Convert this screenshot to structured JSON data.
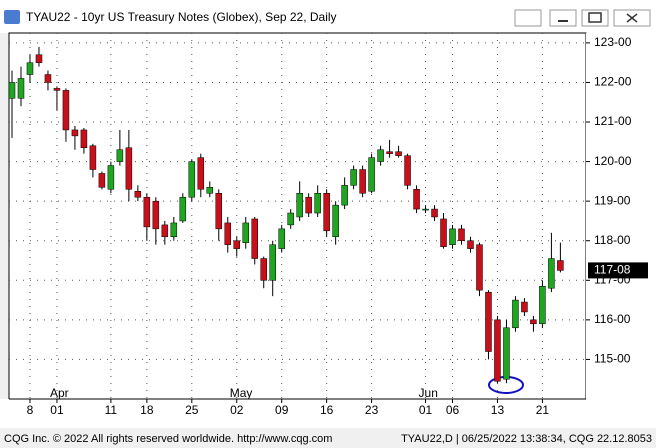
{
  "chart_data": {
    "type": "candlestick",
    "title": "TYAU22 - 10yr US Treasury Notes (Globex), Sep 22, Daily",
    "categories": [
      null,
      null,
      "8",
      null,
      null,
      "01",
      null,
      null,
      null,
      null,
      null,
      "11",
      null,
      null,
      null,
      "18",
      null,
      null,
      null,
      null,
      "25",
      null,
      null,
      null,
      null,
      "02",
      null,
      null,
      null,
      null,
      "09",
      null,
      null,
      null,
      null,
      "16",
      null,
      null,
      null,
      null,
      "23",
      null,
      null,
      null,
      null,
      null,
      "01",
      null,
      null,
      "06",
      null,
      null,
      null,
      null,
      "13",
      null,
      null,
      null,
      null,
      "21",
      null,
      null
    ],
    "months": [
      "Apr",
      "May",
      "Jun"
    ],
    "open": [
      121.6,
      121.6,
      122.2,
      122.7,
      122.2,
      121.85,
      121.8,
      120.8,
      120.8,
      120.4,
      119.7,
      119.3,
      120.0,
      120.35,
      119.25,
      119.1,
      119.0,
      118.4,
      118.1,
      118.5,
      119.1,
      120.1,
      119.2,
      119.2,
      118.45,
      118.0,
      117.95,
      118.55,
      117.55,
      117.0,
      117.8,
      118.4,
      118.6,
      119.1,
      118.7,
      119.2,
      118.1,
      118.9,
      119.4,
      119.8,
      119.25,
      120.0,
      120.25,
      120.25,
      120.15,
      119.3,
      118.8,
      118.8,
      118.55,
      117.9,
      118.3,
      118.0,
      117.9,
      116.7,
      116.0,
      114.5,
      115.8,
      116.45,
      116.0,
      115.9,
      116.8,
      117.5
    ],
    "high": [
      122.3,
      122.4,
      122.7,
      122.9,
      122.3,
      121.9,
      121.85,
      120.9,
      120.85,
      120.45,
      119.75,
      120.0,
      120.8,
      120.8,
      119.4,
      119.2,
      119.1,
      118.5,
      118.6,
      119.2,
      120.05,
      120.2,
      119.5,
      119.3,
      118.6,
      118.1,
      118.6,
      118.6,
      117.6,
      118.0,
      118.4,
      118.8,
      119.5,
      119.2,
      119.4,
      119.3,
      119.0,
      119.6,
      119.9,
      119.9,
      120.2,
      120.4,
      120.55,
      120.4,
      120.2,
      119.4,
      118.9,
      118.9,
      118.7,
      118.4,
      118.4,
      118.1,
      117.95,
      116.75,
      116.1,
      116.0,
      116.6,
      116.55,
      116.1,
      117.0,
      118.2,
      117.95
    ],
    "low": [
      120.6,
      121.4,
      122.0,
      122.4,
      121.8,
      121.3,
      120.5,
      120.3,
      120.2,
      119.6,
      119.3,
      119.2,
      119.9,
      119.0,
      119.0,
      118.0,
      117.9,
      117.9,
      118.0,
      118.45,
      119.0,
      119.1,
      119.1,
      118.0,
      117.7,
      117.6,
      117.8,
      117.4,
      116.8,
      116.6,
      117.7,
      118.3,
      118.5,
      118.6,
      118.6,
      118.1,
      117.9,
      118.8,
      119.3,
      119.1,
      119.2,
      119.9,
      120.1,
      120.1,
      119.3,
      118.7,
      118.7,
      118.5,
      117.8,
      117.8,
      117.9,
      117.7,
      116.6,
      115.0,
      114.4,
      114.4,
      115.7,
      116.1,
      115.7,
      115.8,
      116.7,
      117.2
    ],
    "close": [
      122.0,
      122.1,
      122.5,
      122.5,
      122.0,
      121.8,
      120.8,
      120.65,
      120.35,
      119.8,
      119.35,
      119.9,
      120.3,
      119.3,
      119.1,
      118.35,
      118.3,
      118.1,
      118.45,
      119.1,
      120.0,
      119.3,
      119.35,
      118.3,
      117.9,
      117.8,
      118.45,
      117.55,
      117.0,
      117.9,
      118.3,
      118.7,
      119.2,
      118.7,
      119.2,
      118.25,
      118.9,
      119.4,
      119.8,
      119.2,
      120.1,
      120.3,
      120.2,
      120.15,
      119.4,
      118.8,
      118.8,
      118.6,
      117.85,
      118.3,
      118.0,
      117.8,
      116.75,
      115.2,
      114.45,
      115.8,
      116.5,
      116.2,
      115.9,
      116.85,
      117.55,
      117.25
    ],
    "up_color": "#1fa51f",
    "down_color": "#c8101b",
    "ylim": [
      114,
      123.25
    ],
    "yticks": [
      {
        "value": 115,
        "label": "115-00"
      },
      {
        "value": 116,
        "label": "116-00"
      },
      {
        "value": 117,
        "label": "117-00"
      },
      {
        "value": 118,
        "label": "118-00"
      },
      {
        "value": 119,
        "label": "119-00"
      },
      {
        "value": 120,
        "label": "120-00"
      },
      {
        "value": 121,
        "label": "121-00"
      },
      {
        "value": 122,
        "label": "122-00"
      },
      {
        "value": 123,
        "label": "123-00"
      }
    ],
    "last": {
      "value": 117.25,
      "label": "117-08"
    },
    "grid": true
  },
  "footer": {
    "left": "CQG Inc. © 2022 All rights reserved worldwide. http://www.cqg.com",
    "right": "TYAU22,D | 06/25/2022 13:38:34, CQG 22.12.8053"
  }
}
